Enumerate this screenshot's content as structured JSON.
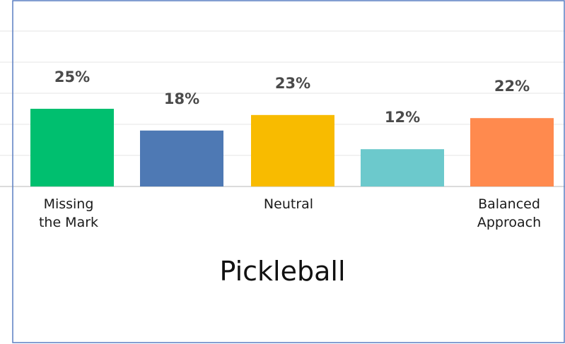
{
  "chart_data": {
    "type": "bar",
    "title": "Pickleball",
    "categories": [
      "Missing the Mark",
      "",
      "Neutral",
      "",
      "Balanced Approach"
    ],
    "values": [
      25,
      18,
      23,
      12,
      22
    ],
    "value_labels": [
      "25%",
      "18%",
      "23%",
      "12%",
      "22%"
    ],
    "colors": [
      "#00bf6f",
      "#4e79b4",
      "#f8bb00",
      "#6cc9cc",
      "#ff8a4e"
    ],
    "unit": "%",
    "ylim": [
      0,
      50
    ],
    "grid": true,
    "legend": "none"
  }
}
